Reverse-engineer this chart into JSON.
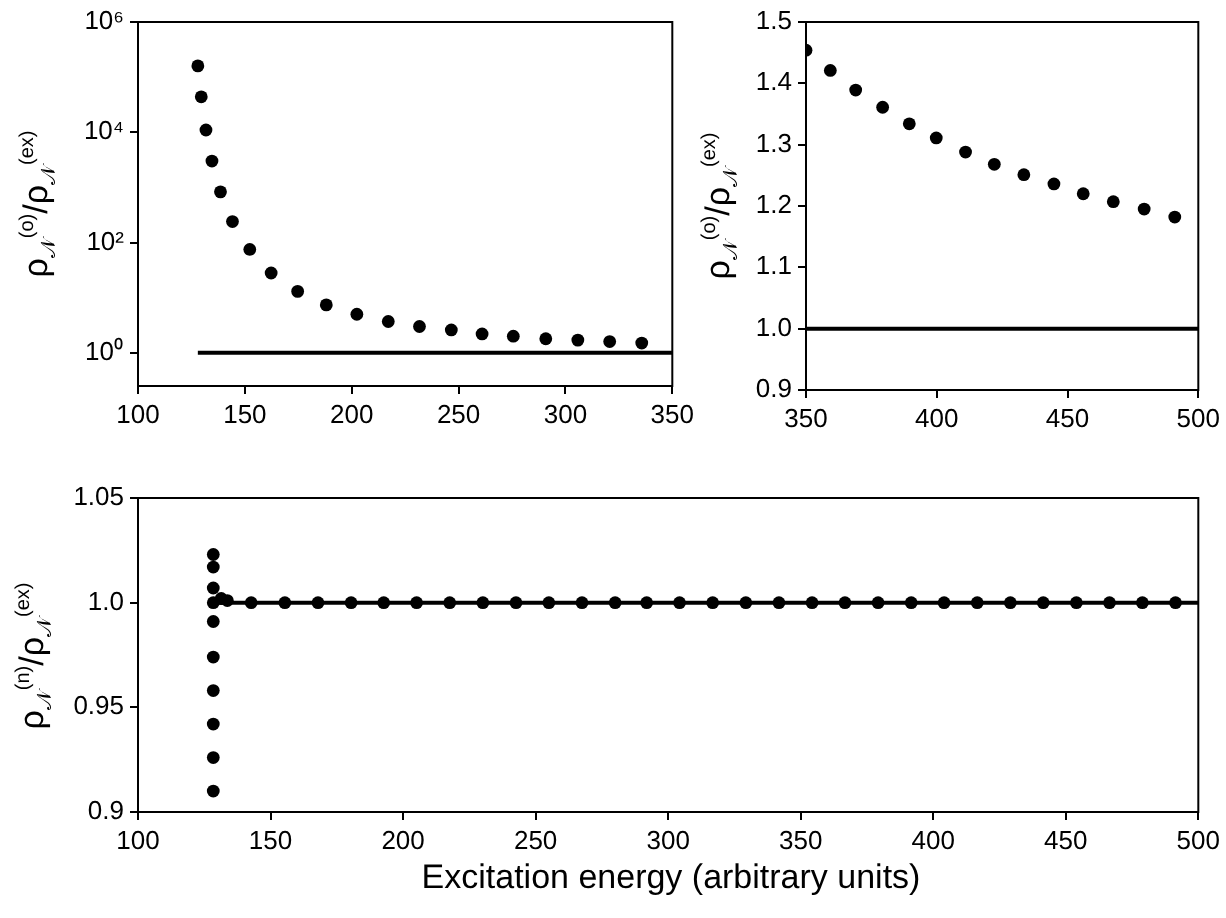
{
  "chart_data": [
    {
      "type": "scatter",
      "ylabel": "ρ$_{𝒩}$$^{(o)}$/ρ$_{𝒩}$$^{(ex)}$",
      "log": "y",
      "xlim": [
        100,
        350
      ],
      "xticks": [
        100,
        150,
        200,
        250,
        300,
        350
      ],
      "ylim": [
        0.25,
        1000000
      ],
      "yticks": [
        {
          "value": 1,
          "label": "10⁰"
        },
        {
          "value": 100,
          "label": "10²"
        },
        {
          "value": 10000,
          "label": "10⁴"
        },
        {
          "value": 1000000,
          "label": "10⁶"
        }
      ],
      "series": [
        {
          "type": "scatter",
          "marker": "circle",
          "color": "#000000",
          "x": [
            128,
            129.6,
            131.8,
            134.6,
            138.6,
            144.2,
            152.3,
            162.3,
            174.7,
            188.1,
            202.4,
            217.1,
            231.7,
            246.6,
            261,
            275.6,
            290.8,
            305.8,
            320.7,
            335.7
          ],
          "values": [
            160000,
            44000,
            11000,
            3000,
            830,
            240,
            75,
            28,
            13,
            7.4,
            5,
            3.7,
            3,
            2.6,
            2.2,
            2,
            1.8,
            1.7,
            1.6,
            1.5
          ]
        },
        {
          "type": "line",
          "marker": "none",
          "color": "#000000",
          "x": [
            128,
            350
          ],
          "values": [
            1,
            1
          ]
        }
      ]
    },
    {
      "type": "scatter",
      "ylabel": "ρ$_{𝒩}$$^{(o)}$/ρ$_{𝒩}$$^{(ex)}$",
      "xlim": [
        350,
        500
      ],
      "xticks": [
        350,
        400,
        450,
        500
      ],
      "ylim": [
        0.9,
        1.5
      ],
      "yticks": [
        0.9,
        {
          "value": 1,
          "label": "1.0"
        },
        1.1,
        1.2,
        1.3,
        1.4,
        1.5
      ],
      "series": [
        {
          "type": "scatter",
          "marker": "circle",
          "color": "#000000",
          "x": [
            350,
            359.3,
            369,
            379.3,
            389.5,
            399.8,
            411,
            422,
            433.3,
            444.8,
            456,
            467.5,
            479.3,
            491
          ],
          "values": [
            1.454,
            1.421,
            1.389,
            1.361,
            1.334,
            1.311,
            1.288,
            1.268,
            1.251,
            1.236,
            1.22,
            1.207,
            1.195,
            1.182
          ]
        },
        {
          "type": "line",
          "marker": "none",
          "color": "#000000",
          "x": [
            350,
            500
          ],
          "values": [
            1,
            1
          ]
        }
      ]
    },
    {
      "type": "scatter",
      "ylabel": "ρ$_{𝒩}$$^{(n)}$/ρ$_{𝒩}$$^{(ex)}$",
      "xlabel": "Excitation energy (arbitrary units)",
      "xlim": [
        100,
        500
      ],
      "xticks": [
        100,
        150,
        200,
        250,
        300,
        350,
        400,
        450,
        500
      ],
      "ylim": [
        0.9,
        1.05
      ],
      "yticks": [
        0.9,
        0.95,
        {
          "value": 1,
          "label": "1.0"
        },
        1.05
      ],
      "series": [
        {
          "type": "scatter",
          "marker": "circle",
          "color": "#000000",
          "x": [
            128.4,
            128.4,
            128.4,
            128.4,
            128.4,
            128.4,
            128.4,
            128.4,
            128.4,
            128.4,
            131.4,
            133.7,
            142.7,
            155.4,
            167.9,
            180.4,
            192.7,
            205.1,
            217.6,
            230.1,
            242.6,
            255,
            267.5,
            280,
            291.9,
            304.3,
            316.8,
            329.3,
            341.8,
            354.3,
            366.7,
            379.2,
            391.7,
            404.1,
            416.6,
            429.1,
            441.5,
            454,
            466.5,
            478.9,
            491.4
          ],
          "values": [
            1.023,
            1.017,
            1.007,
            1,
            0.991,
            0.974,
            0.958,
            0.942,
            0.926,
            0.91,
            1.002,
            1.001,
            1,
            1,
            1,
            1,
            1,
            1,
            1,
            1,
            1,
            1,
            1,
            1,
            1,
            1,
            1,
            1,
            1,
            1,
            1,
            1,
            1,
            1,
            1,
            1,
            1,
            1,
            1,
            1,
            1
          ]
        },
        {
          "type": "line",
          "marker": "none",
          "color": "#000000",
          "x": [
            128,
            500
          ],
          "values": [
            1,
            1
          ]
        }
      ]
    }
  ]
}
